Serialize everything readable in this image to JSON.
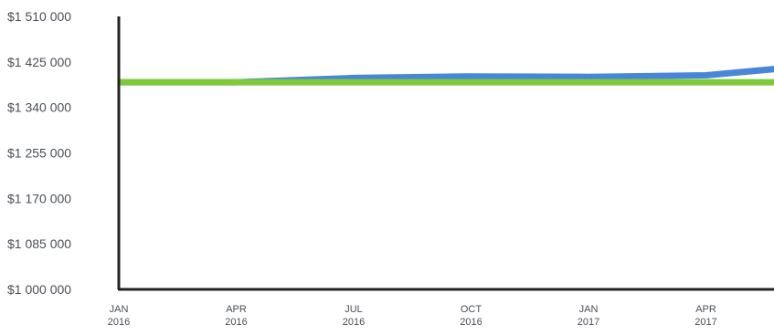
{
  "chart_data": {
    "type": "line",
    "title": "",
    "xlabel": "",
    "ylabel": "",
    "ylim": [
      1000000,
      1510000
    ],
    "y_ticks": [
      {
        "value": 1000000,
        "label": "$1 000 000"
      },
      {
        "value": 1085000,
        "label": "$1 085 000"
      },
      {
        "value": 1170000,
        "label": "$1 170 000"
      },
      {
        "value": 1255000,
        "label": "$1 255 000"
      },
      {
        "value": 1340000,
        "label": "$1 340 000"
      },
      {
        "value": 1425000,
        "label": "$1 425 000"
      },
      {
        "value": 1510000,
        "label": "$1 510 000"
      }
    ],
    "categories": [
      {
        "line1": "JAN",
        "line2": "2016"
      },
      {
        "line1": "APR",
        "line2": "2016"
      },
      {
        "line1": "JUL",
        "line2": "2016"
      },
      {
        "line1": "OCT",
        "line2": "2016"
      },
      {
        "line1": "JAN",
        "line2": "2017"
      },
      {
        "line1": "APR",
        "line2": "2017"
      }
    ],
    "x_extent": 5.8,
    "grid": false,
    "legend": "none",
    "series": [
      {
        "color": "#4a86d8",
        "points": [
          [
            0,
            1387000
          ],
          [
            1,
            1387000
          ],
          [
            2,
            1395000
          ],
          [
            3,
            1398000
          ],
          [
            4,
            1397000
          ],
          [
            5,
            1400000
          ],
          [
            5.8,
            1416000
          ]
        ]
      },
      {
        "color": "#7fca3a",
        "points": [
          [
            0,
            1387000
          ],
          [
            1,
            1387000
          ],
          [
            2,
            1387000
          ],
          [
            3,
            1387000
          ],
          [
            4,
            1387000
          ],
          [
            5,
            1387000
          ],
          [
            5.8,
            1387000
          ]
        ]
      }
    ]
  }
}
